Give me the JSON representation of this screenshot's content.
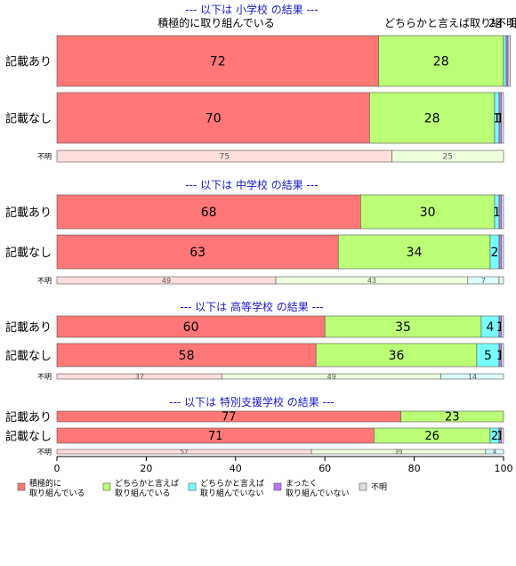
{
  "chart_data": {
    "type": "bar",
    "orientation": "horizontal",
    "stacked": true,
    "xlim": [
      0,
      100
    ],
    "x_ticks": [
      0,
      20,
      40,
      60,
      80,
      100
    ],
    "top_labels": [
      "積極的に取り組んでいる",
      "どちらかと言えば取り組",
      "2",
      "不明",
      "1"
    ],
    "series": [
      {
        "name": "積極的に\n取り組んでいる",
        "color": "#ff7777"
      },
      {
        "name": "どちらかと言えば\n取り組んでいる",
        "color": "#bbff77"
      },
      {
        "name": "どちらかと言えば\n取り組んでいない",
        "color": "#77ffff"
      },
      {
        "name": "まったく\n取り組んでいない",
        "color": "#bb77ff"
      },
      {
        "name": "不明",
        "color": "#dddddd"
      }
    ],
    "groups": [
      {
        "title": "--- 以下は 小学校 の結果 ---",
        "rows": [
          {
            "label": "記載あり",
            "values": [
              72,
              28,
              0.6,
              0.4,
              0.5
            ],
            "value_labels": [
              "72",
              "28",
              "",
              "",
              ""
            ]
          },
          {
            "label": "記載なし",
            "values": [
              70,
              28,
              1,
              0.5,
              0.5
            ],
            "value_labels": [
              "70",
              "28",
              "1",
              "1",
              ""
            ]
          },
          {
            "label": "不明",
            "values": [
              75,
              25,
              0,
              0,
              0
            ],
            "value_labels": [
              "75",
              "25",
              "",
              "",
              ""
            ]
          }
        ]
      },
      {
        "title": "--- 以下は 中学校 の結果 ---",
        "rows": [
          {
            "label": "記載あり",
            "values": [
              68,
              30,
              1,
              0.5,
              0.5
            ],
            "value_labels": [
              "68",
              "30",
              "1",
              "",
              ""
            ]
          },
          {
            "label": "記載なし",
            "values": [
              63,
              34,
              2,
              0.5,
              0.5
            ],
            "value_labels": [
              "63",
              "34",
              "2",
              "",
              ""
            ]
          },
          {
            "label": "不明",
            "values": [
              49,
              43,
              7,
              0,
              1
            ],
            "value_labels": [
              "49",
              "43",
              "7",
              "",
              ""
            ]
          }
        ]
      },
      {
        "title": "--- 以下は 高等学校 の結果 ---",
        "rows": [
          {
            "label": "記載あり",
            "values": [
              60,
              35,
              4,
              0.5,
              0.5
            ],
            "value_labels": [
              "60",
              "35",
              "4",
              "1",
              ""
            ]
          },
          {
            "label": "記載なし",
            "values": [
              58,
              36,
              5,
              0.5,
              0.5
            ],
            "value_labels": [
              "58",
              "36",
              "5",
              "1",
              ""
            ]
          },
          {
            "label": "不明",
            "values": [
              37,
              49,
              14,
              0,
              0
            ],
            "value_labels": [
              "37",
              "49",
              "14",
              "",
              ""
            ]
          }
        ]
      },
      {
        "title": "--- 以下は 特別支援学校 の結果 ---",
        "rows": [
          {
            "label": "記載あり",
            "values": [
              77,
              23,
              0,
              0,
              0
            ],
            "value_labels": [
              "77",
              "23",
              "",
              "",
              ""
            ]
          },
          {
            "label": "記載なし",
            "values": [
              71,
              26,
              2,
              0.5,
              0.5
            ],
            "value_labels": [
              "71",
              "26",
              "2",
              "1",
              ""
            ]
          },
          {
            "label": "不明",
            "values": [
              57,
              39,
              4,
              0,
              0
            ],
            "value_labels": [
              "57",
              "39",
              "4",
              "",
              ""
            ]
          }
        ]
      }
    ]
  }
}
